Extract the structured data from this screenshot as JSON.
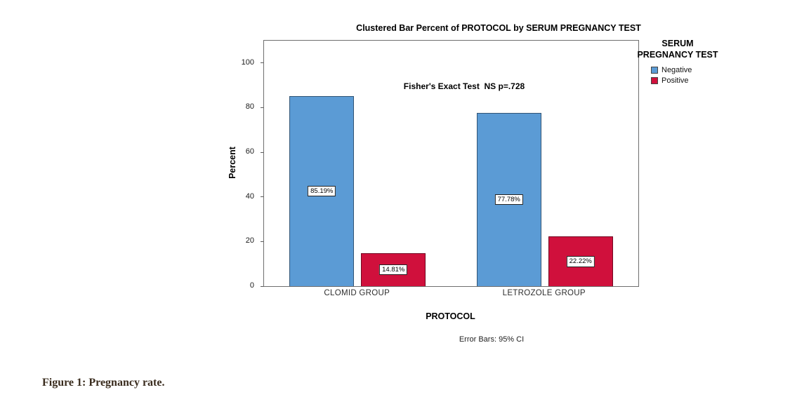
{
  "caption": "Figure 1: Pregnancy rate.",
  "chart_data": {
    "type": "bar",
    "title": "Clustered Bar Percent of PROTOCOL by SERUM PREGNANCY TEST",
    "annotation": "Fisher's Exact Test  NS p=.728",
    "xlabel": "PROTOCOL",
    "ylabel": "Percent",
    "footnote": "Error Bars: 95% CI",
    "legend_title": "SERUM PREGNANCY TEST",
    "legend_position": "right",
    "grid": false,
    "ylim": [
      0,
      100
    ],
    "yticks": [
      0,
      20,
      40,
      60,
      80,
      100
    ],
    "axis_headroom_value": 110,
    "categories": [
      "CLOMID GROUP",
      "LETROZOLE GROUP"
    ],
    "series": [
      {
        "name": "Negative",
        "color": "#5B9BD5",
        "values": [
          85.19,
          77.78
        ],
        "value_labels": [
          "85.19%",
          "77.78%"
        ]
      },
      {
        "name": "Positive",
        "color": "#D0103C",
        "values": [
          14.81,
          22.22
        ],
        "value_labels": [
          "14.81%",
          "22.22%"
        ]
      }
    ]
  }
}
